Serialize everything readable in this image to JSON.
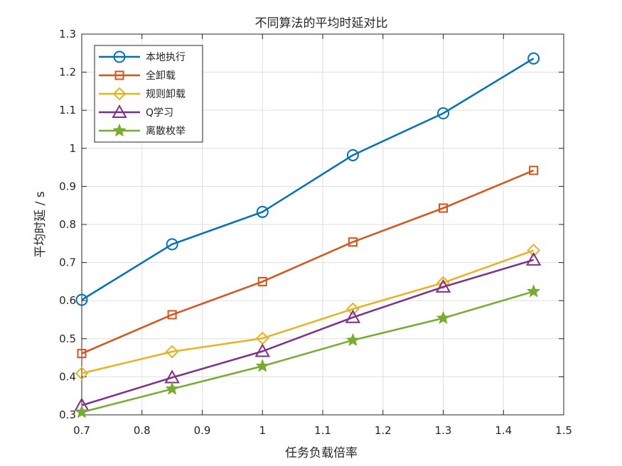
{
  "chart_data": {
    "type": "line",
    "title": "不同算法的平均时延对比",
    "xlabel": "任务负载倍率",
    "ylabel": "平均时延 / s",
    "xlim": [
      0.7,
      1.5
    ],
    "ylim": [
      0.3,
      1.3
    ],
    "xticks": [
      "0.7",
      "0.8",
      "0.9",
      "1",
      "1.1",
      "1.2",
      "1.3",
      "1.4",
      "1.5"
    ],
    "yticks": [
      "0.3",
      "0.4",
      "0.5",
      "0.6",
      "0.7",
      "0.8",
      "0.9",
      "1",
      "1.1",
      "1.2",
      "1.3"
    ],
    "grid": true,
    "legend_position": "top-left",
    "x": [
      0.7,
      0.85,
      1.0,
      1.15,
      1.3,
      1.45
    ],
    "series": [
      {
        "name": "本地执行",
        "marker": "circle",
        "color": "#0072BD",
        "values": [
          0.602,
          0.748,
          0.833,
          0.982,
          1.092,
          1.236
        ]
      },
      {
        "name": "全卸载",
        "marker": "square",
        "color": "#D95319",
        "values": [
          0.461,
          0.563,
          0.65,
          0.754,
          0.843,
          0.942
        ]
      },
      {
        "name": "规则卸载",
        "marker": "diamond",
        "color": "#EDB120",
        "values": [
          0.409,
          0.466,
          0.501,
          0.578,
          0.647,
          0.732
        ]
      },
      {
        "name": "Q学习",
        "marker": "triangle",
        "color": "#7E2F8E",
        "values": [
          0.325,
          0.398,
          0.467,
          0.556,
          0.636,
          0.707
        ]
      },
      {
        "name": "离散枚举",
        "marker": "star",
        "color": "#77AC30",
        "values": [
          0.307,
          0.368,
          0.428,
          0.496,
          0.554,
          0.624
        ]
      }
    ]
  }
}
